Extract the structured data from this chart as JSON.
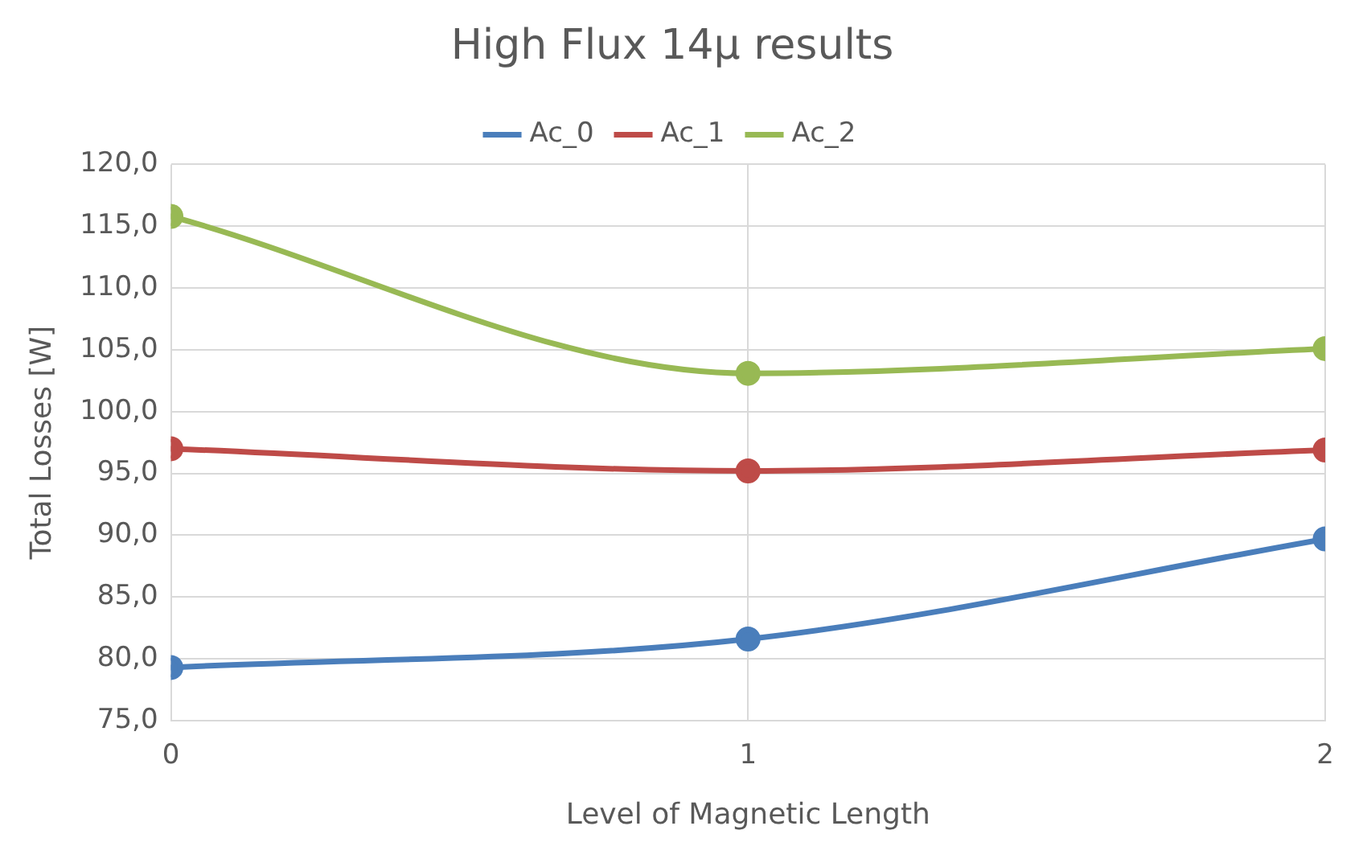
{
  "chart_data": {
    "type": "line",
    "title": "High Flux 14μ results",
    "xlabel": "Level of Magnetic Length",
    "ylabel": "Total Losses [W]",
    "x": [
      0,
      1,
      2
    ],
    "series": [
      {
        "name": "Ac_0",
        "color": "#4a7ebb",
        "values": [
          79.3,
          81.6,
          89.7
        ]
      },
      {
        "name": "Ac_1",
        "color": "#be4b48",
        "values": [
          97.0,
          95.2,
          96.9
        ]
      },
      {
        "name": "Ac_2",
        "color": "#98b954",
        "values": [
          115.8,
          103.1,
          105.1
        ]
      }
    ],
    "xlim": [
      0,
      2
    ],
    "xticks": [
      0,
      1,
      2
    ],
    "ylim": [
      75,
      120
    ],
    "yticks": [
      {
        "value": 75,
        "label": "75,0"
      },
      {
        "value": 80,
        "label": "80,0"
      },
      {
        "value": 85,
        "label": "85,0"
      },
      {
        "value": 90,
        "label": "90,0"
      },
      {
        "value": 95,
        "label": "95,0"
      },
      {
        "value": 100,
        "label": "100,0"
      },
      {
        "value": 105,
        "label": "105,0"
      },
      {
        "value": 110,
        "label": "110,0"
      },
      {
        "value": 115,
        "label": "115,0"
      },
      {
        "value": 120,
        "label": "120,0"
      }
    ],
    "grid": true,
    "legend": "top",
    "marker": "circle",
    "line_style": "solid"
  }
}
